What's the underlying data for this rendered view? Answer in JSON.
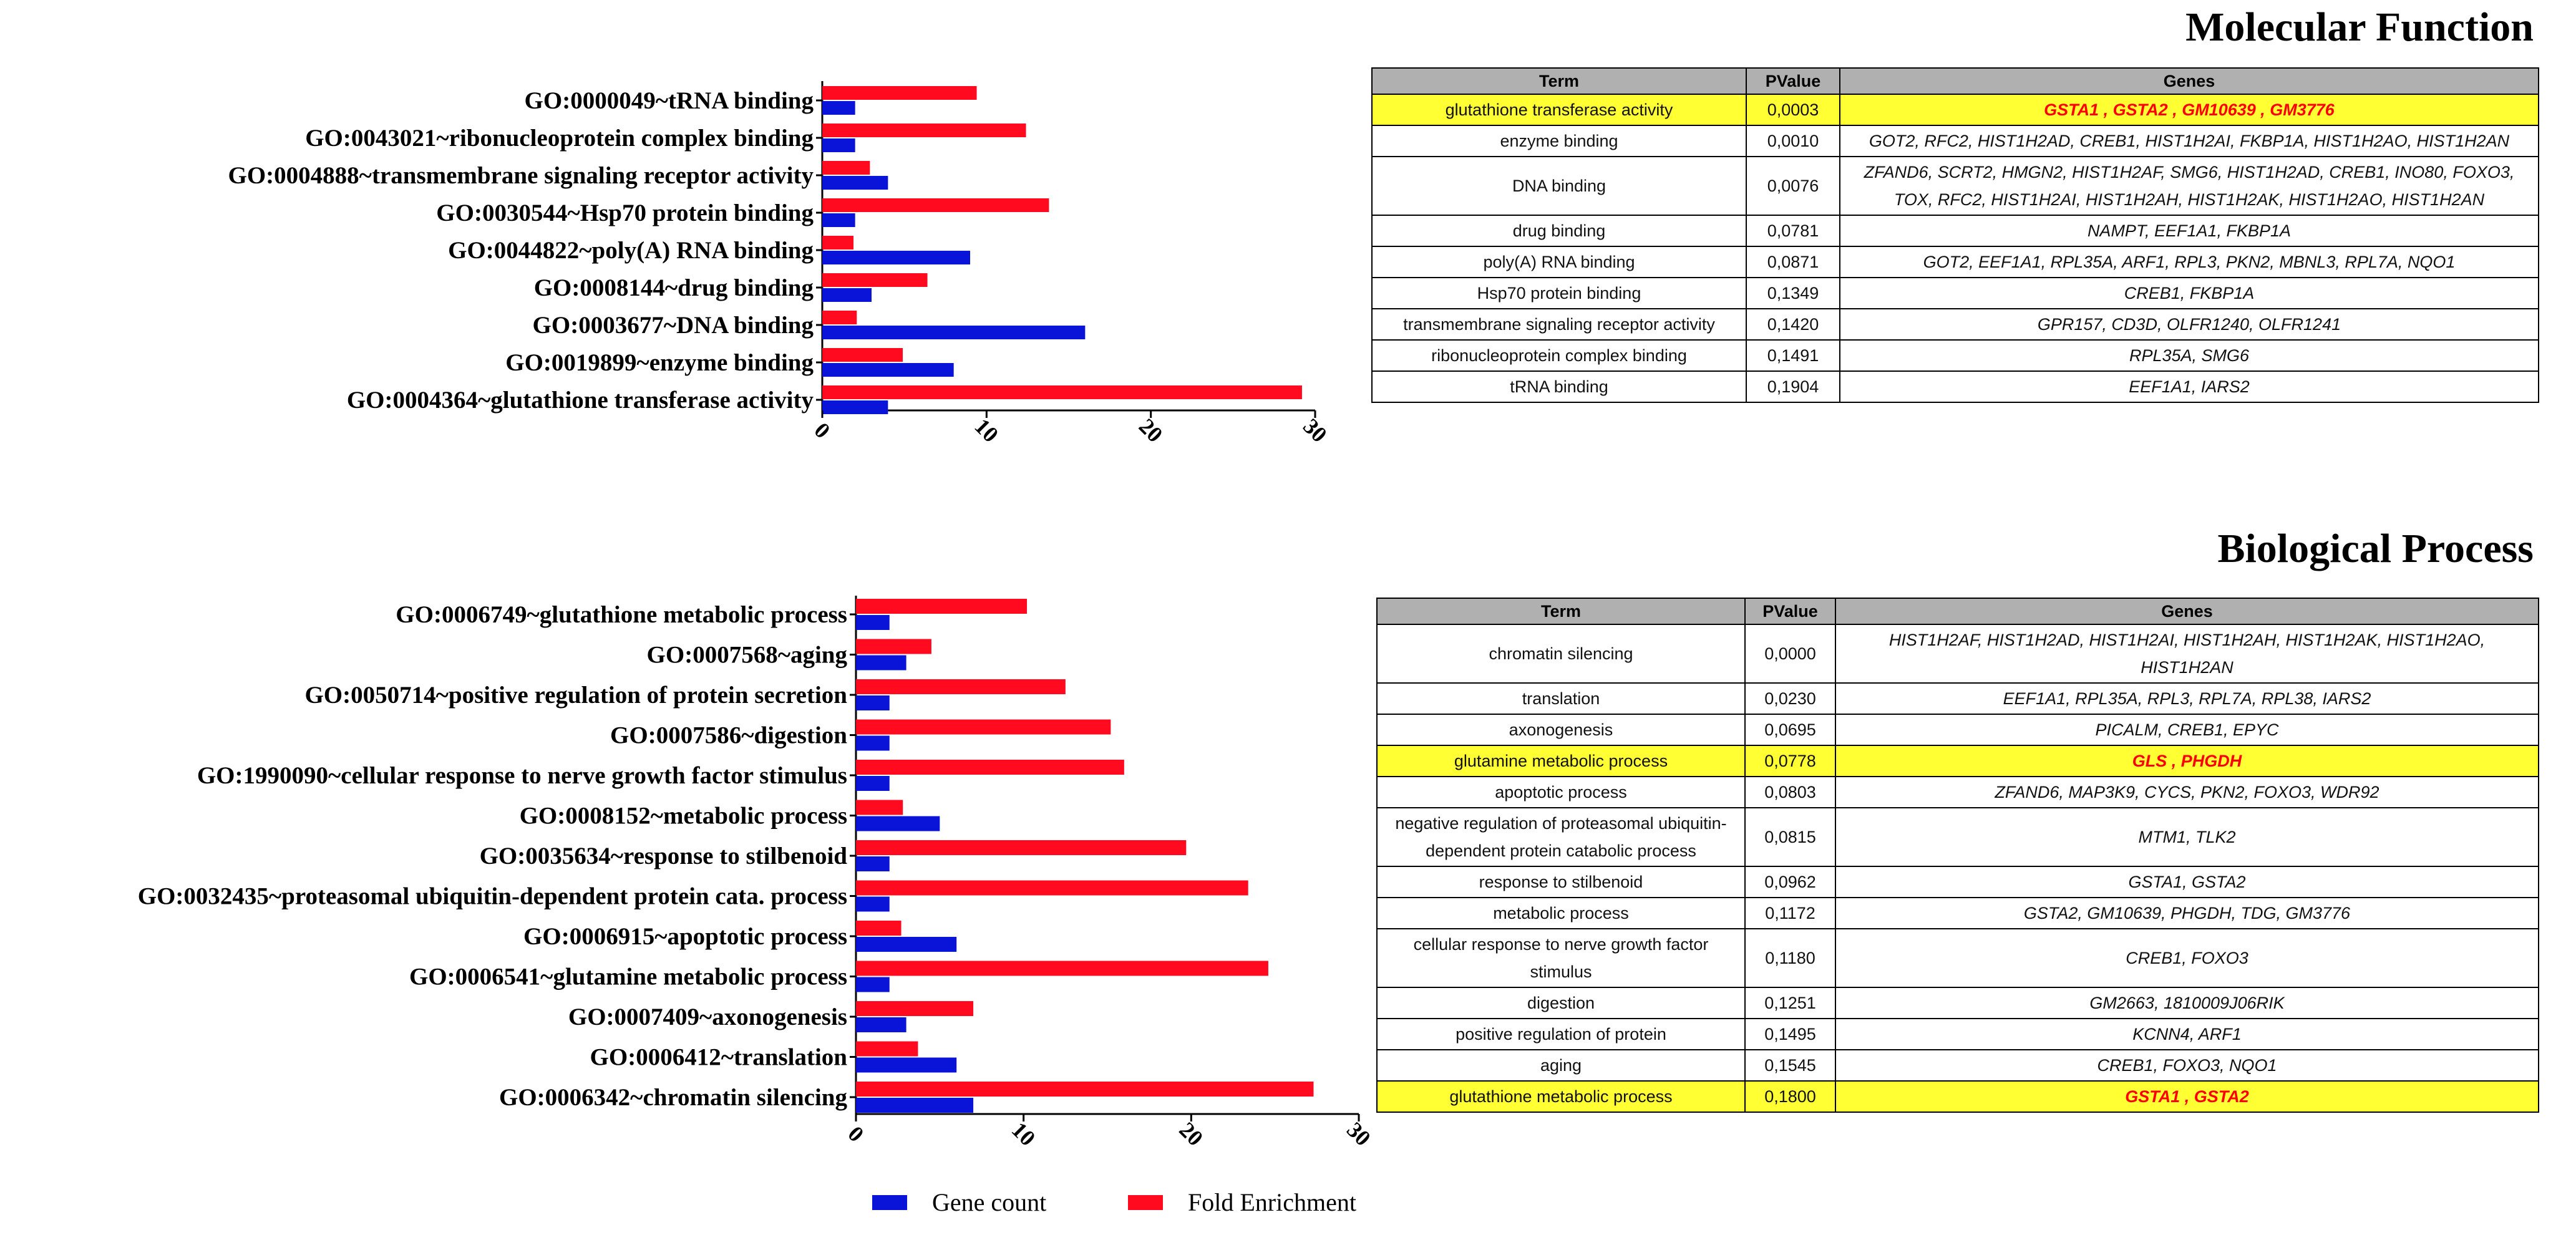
{
  "colors": {
    "gene_count": "#0a14d8",
    "fold_enrichment": "#ff0a1e",
    "highlight": "#ffff33",
    "header": "#b0b0b0"
  },
  "molecular_function": {
    "title": "Molecular Function",
    "table": {
      "headers": [
        "Term",
        "PValue",
        "Genes"
      ],
      "rows": [
        {
          "term": "glutathione transferase activity",
          "pvalue": "0,0003",
          "genes": "GSTA1 , GSTA2 , GM10639 , GM3776",
          "highlight": true
        },
        {
          "term": "enzyme binding",
          "pvalue": "0,0010",
          "genes": "GOT2, RFC2, HIST1H2AD, CREB1, HIST1H2AI, FKBP1A, HIST1H2AO, HIST1H2AN",
          "highlight": false
        },
        {
          "term": "DNA binding",
          "pvalue": "0,0076",
          "genes": "ZFAND6, SCRT2, HMGN2, HIST1H2AF, SMG6, HIST1H2AD, CREB1, INO80, FOXO3, TOX, RFC2, HIST1H2AI, HIST1H2AH, HIST1H2AK, HIST1H2AO, HIST1H2AN",
          "highlight": false
        },
        {
          "term": "drug binding",
          "pvalue": "0,0781",
          "genes": "NAMPT, EEF1A1, FKBP1A",
          "highlight": false
        },
        {
          "term": "poly(A) RNA binding",
          "pvalue": "0,0871",
          "genes": "GOT2, EEF1A1, RPL35A, ARF1, RPL3, PKN2, MBNL3, RPL7A, NQO1",
          "highlight": false
        },
        {
          "term": "Hsp70 protein binding",
          "pvalue": "0,1349",
          "genes": "CREB1, FKBP1A",
          "highlight": false
        },
        {
          "term": "transmembrane signaling receptor activity",
          "pvalue": "0,1420",
          "genes": "GPR157, CD3D, OLFR1240, OLFR1241",
          "highlight": false
        },
        {
          "term": "ribonucleoprotein complex binding",
          "pvalue": "0,1491",
          "genes": "RPL35A, SMG6",
          "highlight": false
        },
        {
          "term": "tRNA binding",
          "pvalue": "0,1904",
          "genes": "EEF1A1, IARS2",
          "highlight": false
        }
      ]
    }
  },
  "biological_process": {
    "title": "Biological Process",
    "table": {
      "headers": [
        "Term",
        "PValue",
        "Genes"
      ],
      "rows": [
        {
          "term": "chromatin silencing",
          "pvalue": "0,0000",
          "genes": "HIST1H2AF, HIST1H2AD, HIST1H2AI, HIST1H2AH, HIST1H2AK, HIST1H2AO, HIST1H2AN",
          "highlight": false
        },
        {
          "term": "translation",
          "pvalue": "0,0230",
          "genes": "EEF1A1, RPL35A, RPL3, RPL7A, RPL38, IARS2",
          "highlight": false
        },
        {
          "term": "axonogenesis",
          "pvalue": "0,0695",
          "genes": "PICALM, CREB1, EPYC",
          "highlight": false
        },
        {
          "term": "glutamine metabolic process",
          "pvalue": "0,0778",
          "genes": "GLS , PHGDH",
          "highlight": true
        },
        {
          "term": "apoptotic process",
          "pvalue": "0,0803",
          "genes": "ZFAND6, MAP3K9, CYCS, PKN2, FOXO3, WDR92",
          "highlight": false
        },
        {
          "term": "negative regulation of proteasomal ubiquitin-dependent protein catabolic process",
          "pvalue": "0,0815",
          "genes": "MTM1, TLK2",
          "highlight": false
        },
        {
          "term": "response to stilbenoid",
          "pvalue": "0,0962",
          "genes": "GSTA1, GSTA2",
          "highlight": false
        },
        {
          "term": "metabolic process",
          "pvalue": "0,1172",
          "genes": "GSTA2, GM10639, PHGDH, TDG, GM3776",
          "highlight": false
        },
        {
          "term": "cellular response to nerve growth factor stimulus",
          "pvalue": "0,1180",
          "genes": "CREB1, FOXO3",
          "highlight": false
        },
        {
          "term": "digestion",
          "pvalue": "0,1251",
          "genes": "GM2663, 1810009J06RIK",
          "highlight": false
        },
        {
          "term": "positive regulation of protein",
          "pvalue": "0,1495",
          "genes": "KCNN4, ARF1",
          "highlight": false
        },
        {
          "term": "aging",
          "pvalue": "0,1545",
          "genes": "CREB1, FOXO3, NQO1",
          "highlight": false
        },
        {
          "term": "glutathione metabolic process",
          "pvalue": "0,1800",
          "genes": "GSTA1 , GSTA2",
          "highlight": true
        }
      ]
    }
  },
  "legend": {
    "gene_count": "Gene count",
    "fold_enrichment": "Fold Enrichment"
  },
  "chart_data": [
    {
      "type": "bar",
      "orientation": "horizontal",
      "title": "Molecular Function",
      "categories": [
        "GO:0000049~tRNA binding",
        "GO:0043021~ribonucleoprotein complex binding",
        "GO:0004888~transmembrane signaling receptor activity",
        "GO:0030544~Hsp70 protein binding",
        "GO:0044822~poly(A) RNA binding",
        "GO:0008144~drug binding",
        "GO:0003677~DNA binding",
        "GO:0019899~enzyme binding",
        "GO:0004364~glutathione transferase activity"
      ],
      "series": [
        {
          "name": "Gene count",
          "values": [
            2,
            2,
            4,
            2,
            9,
            3,
            16,
            8,
            4
          ]
        },
        {
          "name": "Fold Enrichment",
          "values": [
            9.4,
            12.4,
            2.9,
            13.8,
            1.9,
            6.4,
            2.1,
            4.9,
            29.2
          ]
        }
      ],
      "xlim": [
        0,
        30
      ],
      "xticks": [
        "0",
        "10",
        "20",
        "30"
      ],
      "xlabel": "",
      "ylabel": ""
    },
    {
      "type": "bar",
      "orientation": "horizontal",
      "title": "Biological Process",
      "categories": [
        "GO:0006749~glutathione metabolic process",
        "GO:0007568~aging",
        "GO:0050714~positive regulation of protein secretion",
        "GO:0007586~digestion",
        "GO:1990090~cellular response to nerve growth factor stimulus",
        "GO:0008152~metabolic process",
        "GO:0035634~response to stilbenoid",
        "GO:0032435~proteasomal ubiquitin-dependent protein cata. process",
        "GO:0006915~apoptotic process",
        "GO:0006541~glutamine metabolic process",
        "GO:0007409~axonogenesis",
        "GO:0006412~translation",
        "GO:0006342~chromatin silencing"
      ],
      "series": [
        {
          "name": "Gene count",
          "values": [
            2,
            3,
            2,
            2,
            2,
            5,
            2,
            2,
            6,
            2,
            3,
            6,
            7
          ]
        },
        {
          "name": "Fold Enrichment",
          "values": [
            10.2,
            4.5,
            12.5,
            15.2,
            16.0,
            2.8,
            19.7,
            23.4,
            2.7,
            24.6,
            7.0,
            3.7,
            27.3
          ]
        }
      ],
      "xlim": [
        0,
        30
      ],
      "xticks": [
        "0",
        "10",
        "20",
        "30"
      ],
      "xlabel": "",
      "ylabel": ""
    }
  ]
}
